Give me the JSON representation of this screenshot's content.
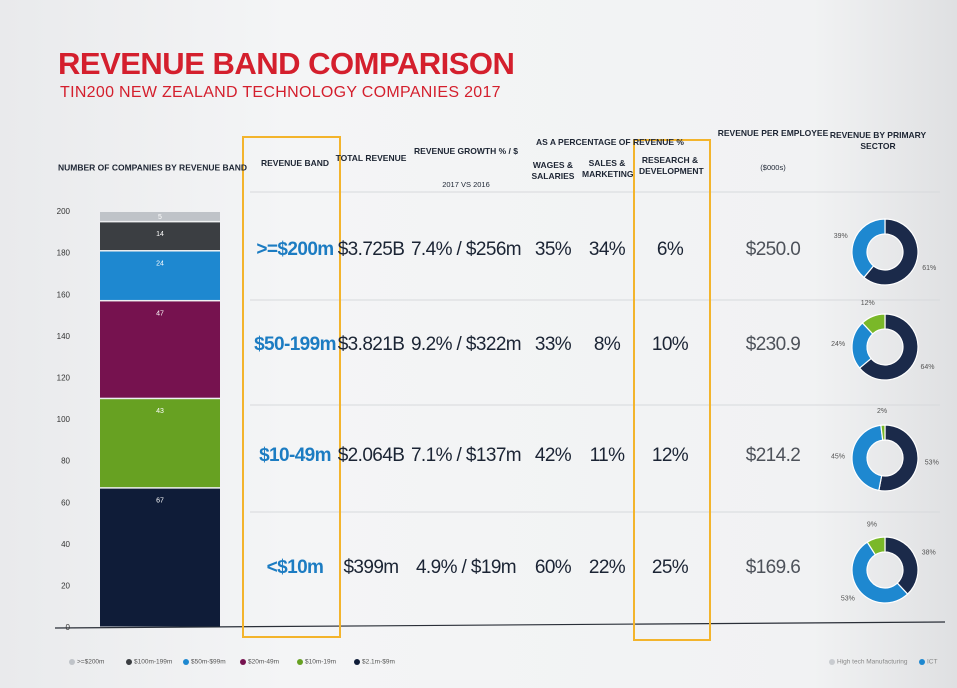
{
  "header": {
    "title": "REVENUE BAND COMPARISON",
    "subtitle": "TIN200 NEW ZEALAND TECHNOLOGY COMPANIES 2017"
  },
  "chart_data": [
    {
      "type": "bar",
      "stacked": true,
      "title": "NUMBER OF COMPANIES BY REVENUE BAND",
      "categories": [
        null
      ],
      "series": [
        {
          "name": ">=$200m",
          "color": "#bfc3c8",
          "values": [
            5
          ]
        },
        {
          "name": "$100m-199m",
          "color": "#3b3e42",
          "values": [
            14
          ]
        },
        {
          "name": "$50m-$99m",
          "color": "#1e88d0",
          "values": [
            24
          ]
        },
        {
          "name": "$20m-49m",
          "color": "#76124f",
          "values": [
            47
          ]
        },
        {
          "name": "$10m-19m",
          "color": "#67a122",
          "values": [
            43
          ]
        },
        {
          "name": "$2.1m-$9m",
          "color": "#0f1c38",
          "values": [
            67
          ]
        }
      ],
      "ylim": [
        0,
        200
      ],
      "yticks": [
        0,
        20,
        40,
        60,
        80,
        100,
        120,
        140,
        160,
        180,
        200
      ],
      "grid": false,
      "legend": "bottom"
    },
    {
      "type": "pie",
      "donut": true,
      "values": [
        61,
        39
      ],
      "value_labels": [
        "61%",
        "39%"
      ],
      "colors": [
        "#1b2a4a",
        "#1e88d0"
      ]
    },
    {
      "type": "pie",
      "donut": true,
      "values": [
        64,
        24,
        12
      ],
      "value_labels": [
        "64%",
        "24%",
        "12%"
      ],
      "colors": [
        "#1b2a4a",
        "#1e88d0",
        "#7ab829"
      ]
    },
    {
      "type": "pie",
      "donut": true,
      "values": [
        53,
        45,
        2
      ],
      "value_labels": [
        "53%",
        "45%",
        "2%"
      ],
      "colors": [
        "#1b2a4a",
        "#1e88d0",
        "#7ab829"
      ]
    },
    {
      "type": "pie",
      "donut": true,
      "values": [
        38,
        53,
        9
      ],
      "value_labels": [
        "38%",
        "53%",
        "9%"
      ],
      "colors": [
        "#1b2a4a",
        "#1e88d0",
        "#7ab829"
      ]
    }
  ],
  "table": {
    "group_header": "AS A PERCENTAGE OF REVENUE %",
    "columns": [
      {
        "label": "REVENUE BAND"
      },
      {
        "label": "TOTAL REVENUE"
      },
      {
        "label": "REVENUE GROWTH % / $",
        "sub": "2017 VS 2016"
      },
      {
        "label": "WAGES & SALARIES"
      },
      {
        "label": "SALES & MARKETING"
      },
      {
        "label": "RESEARCH & DEVELOPMENT"
      },
      {
        "label": "REVENUE PER EMPLOYEE",
        "sub": "($000s)"
      },
      {
        "label": "REVENUE BY PRIMARY SECTOR"
      }
    ],
    "rows": [
      [
        ">=$200m",
        "$3.725B",
        "7.4% / $256m",
        "35%",
        "34%",
        "6%",
        "$250.0"
      ],
      [
        "$50-199m",
        "$3.821B",
        "9.2% / $322m",
        "33%",
        "8%",
        "10%",
        "$230.9"
      ],
      [
        "$10-49m",
        "$2.064B",
        "7.1% / $137m",
        "42%",
        "11%",
        "12%",
        "$214.2"
      ],
      [
        "<$10m",
        "$399m",
        "4.9% / $19m",
        "60%",
        "22%",
        "25%",
        "$169.6"
      ]
    ]
  },
  "sector_legend": [
    {
      "name": "High tech Manufacturing",
      "color": "#c9ccd0"
    },
    {
      "name": "ICT",
      "color": "#1e88d0"
    }
  ]
}
